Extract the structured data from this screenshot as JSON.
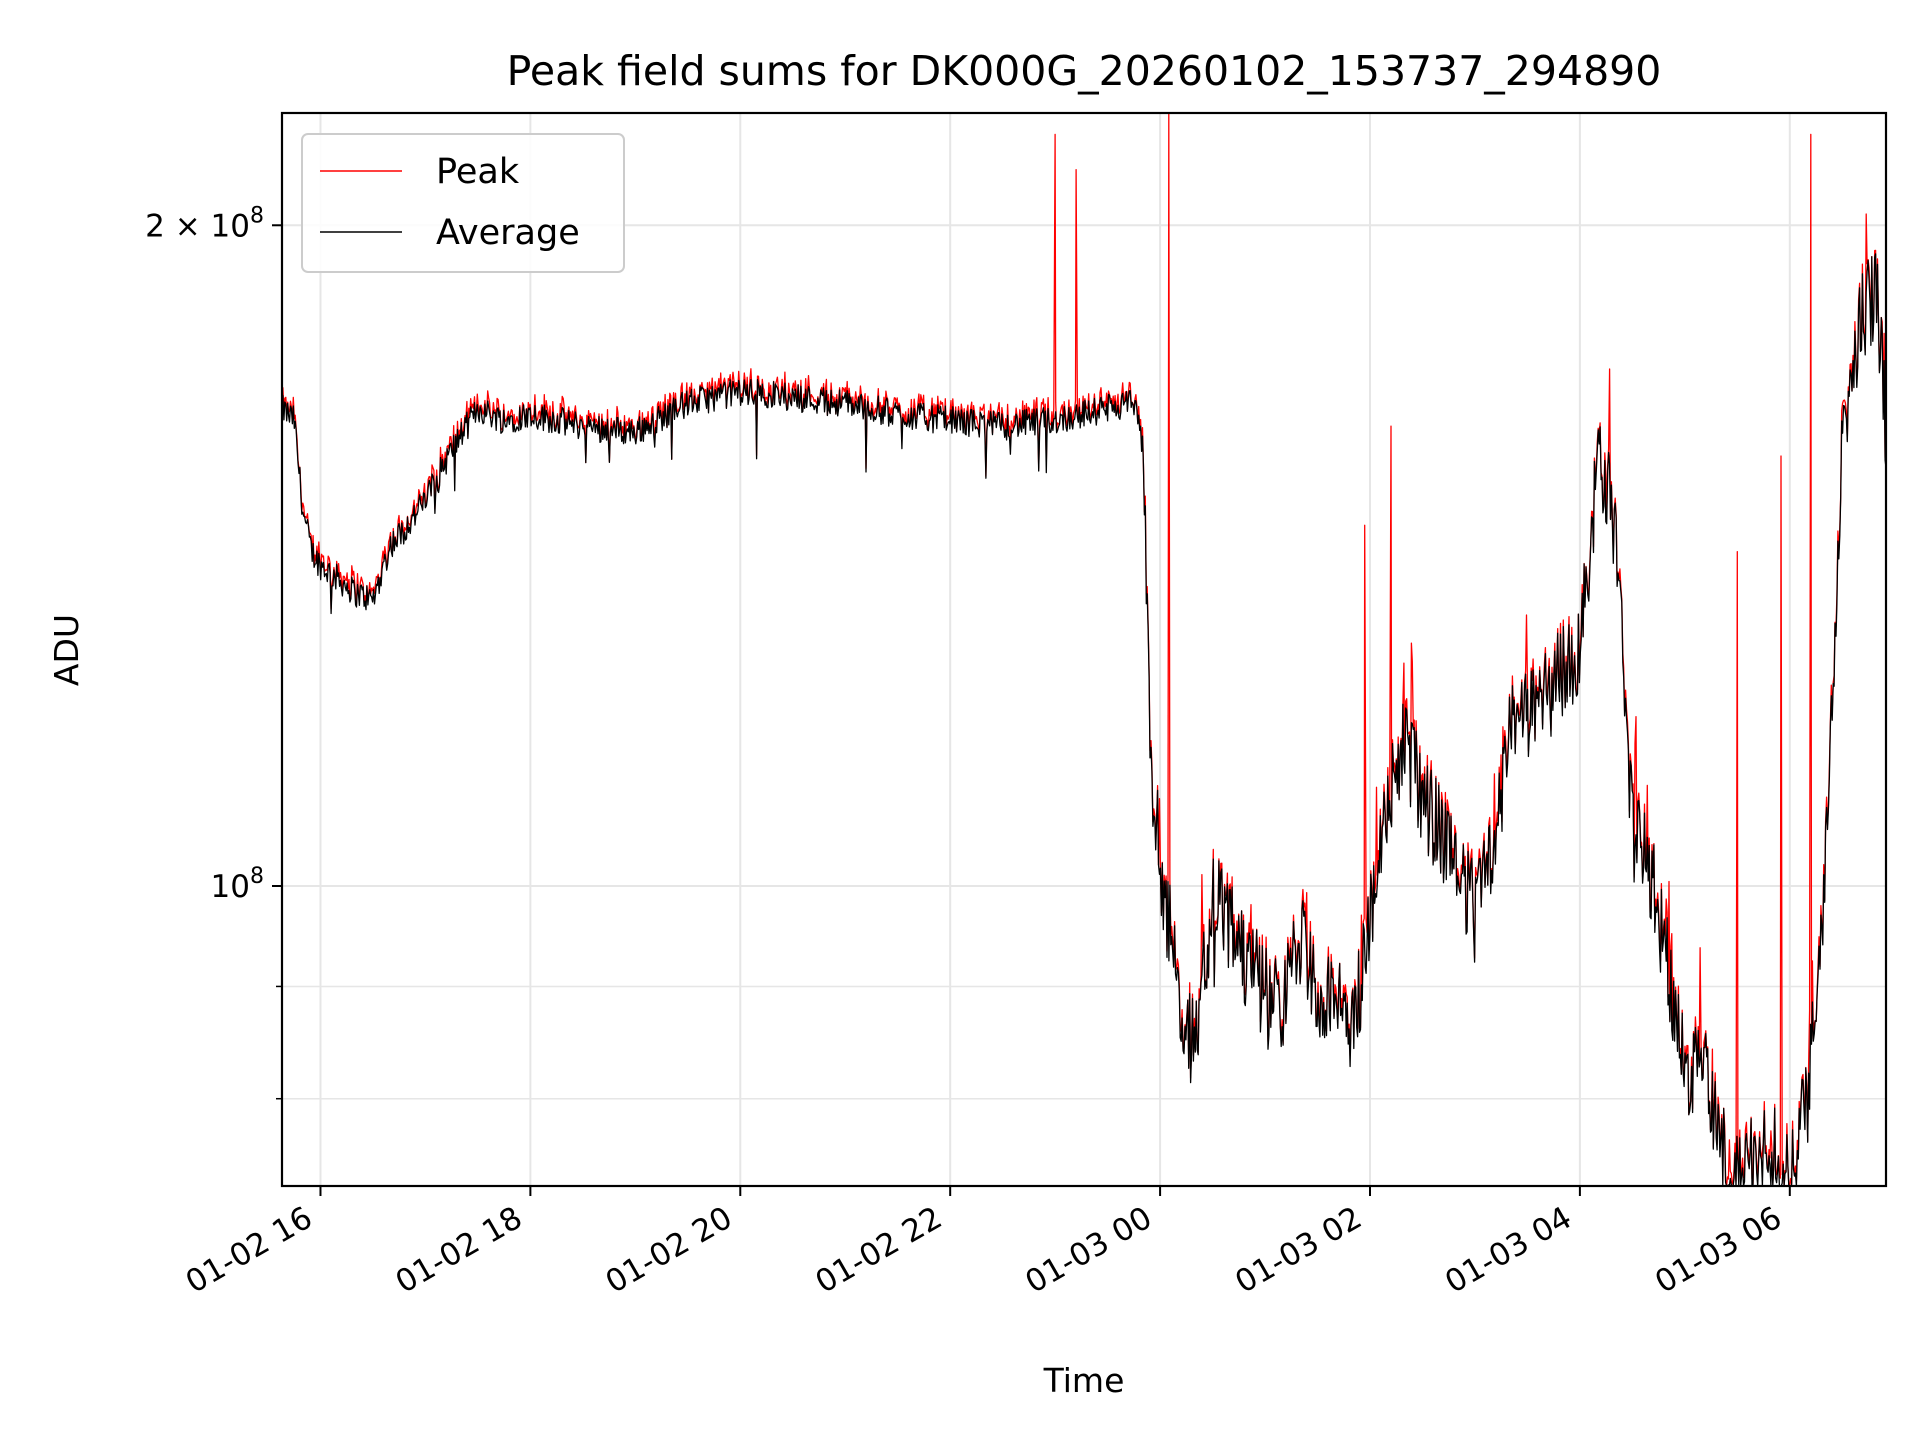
{
  "chart_data": {
    "type": "line",
    "title": "Peak field sums for DK000G_20260102_153737_294890",
    "xlabel": "Time",
    "ylabel": "ADU",
    "x_range": [
      "2026-01-02 15:38",
      "2026-01-03 06:55"
    ],
    "ylim": [
      73000000,
      225000000
    ],
    "yscale": "log",
    "grid": true,
    "legend": "upper left",
    "x_ticks": [
      "01-02 16",
      "01-02 18",
      "01-02 20",
      "01-02 22",
      "01-03 00",
      "01-03 02",
      "01-03 04",
      "01-03 06"
    ],
    "y_ticks": [
      {
        "value": 100000000,
        "base": "10",
        "exp": "8",
        "prefix": ""
      },
      {
        "value": 200000000,
        "base": "10",
        "exp": "8",
        "prefix": "2 × "
      }
    ],
    "y_minor_ticks": [
      80000000,
      90000000
    ],
    "anchors_x": [
      "2026-01-02 15:38",
      "2026-01-02 15:45",
      "2026-01-02 15:50",
      "2026-01-02 15:55",
      "2026-01-02 16:00",
      "2026-01-02 16:10",
      "2026-01-02 16:20",
      "2026-01-02 16:30",
      "2026-01-02 16:40",
      "2026-01-02 16:50",
      "2026-01-02 17:00",
      "2026-01-02 17:15",
      "2026-01-02 17:30",
      "2026-01-02 17:45",
      "2026-01-02 18:00",
      "2026-01-02 18:30",
      "2026-01-02 19:00",
      "2026-01-02 19:30",
      "2026-01-02 20:00",
      "2026-01-02 20:30",
      "2026-01-02 21:00",
      "2026-01-02 21:30",
      "2026-01-02 22:00",
      "2026-01-02 22:30",
      "2026-01-02 23:00",
      "2026-01-02 23:30",
      "2026-01-02 23:45",
      "2026-01-02 23:50",
      "2026-01-02 23:55",
      "2026-01-03 00:00",
      "2026-01-03 00:10",
      "2026-01-03 00:20",
      "2026-01-03 00:30",
      "2026-01-03 00:40",
      "2026-01-03 00:50",
      "2026-01-03 01:00",
      "2026-01-03 01:10",
      "2026-01-03 01:20",
      "2026-01-03 01:30",
      "2026-01-03 01:40",
      "2026-01-03 01:50",
      "2026-01-03 02:00",
      "2026-01-03 02:10",
      "2026-01-03 02:20",
      "2026-01-03 02:30",
      "2026-01-03 02:40",
      "2026-01-03 02:50",
      "2026-01-03 03:00",
      "2026-01-03 03:10",
      "2026-01-03 03:20",
      "2026-01-03 03:30",
      "2026-01-03 03:40",
      "2026-01-03 03:50",
      "2026-01-03 04:00",
      "2026-01-03 04:10",
      "2026-01-03 04:20",
      "2026-01-03 04:30",
      "2026-01-03 04:40",
      "2026-01-03 04:50",
      "2026-01-03 05:00",
      "2026-01-03 05:10",
      "2026-01-03 05:20",
      "2026-01-03 05:30",
      "2026-01-03 05:40",
      "2026-01-03 05:50",
      "2026-01-03 06:00",
      "2026-01-03 06:10",
      "2026-01-03 06:20",
      "2026-01-03 06:30",
      "2026-01-03 06:40",
      "2026-01-03 06:50",
      "2026-01-03 06:55"
    ],
    "anchors_y": [
      165000000,
      163000000,
      148000000,
      142000000,
      140000000,
      138000000,
      136000000,
      135000000,
      143000000,
      146000000,
      150000000,
      158000000,
      165000000,
      163000000,
      164000000,
      162000000,
      161000000,
      166000000,
      168000000,
      167000000,
      166000000,
      164000000,
      163000000,
      162000000,
      163000000,
      165000000,
      166000000,
      158000000,
      112000000,
      103000000,
      90000000,
      84000000,
      99000000,
      96000000,
      92000000,
      90000000,
      88000000,
      95000000,
      88000000,
      91000000,
      86000000,
      96000000,
      110000000,
      116000000,
      110000000,
      106000000,
      103000000,
      97000000,
      103000000,
      118000000,
      120000000,
      122000000,
      125000000,
      128000000,
      155000000,
      150000000,
      106000000,
      102000000,
      92000000,
      82000000,
      84000000,
      76000000,
      74000000,
      75000000,
      76000000,
      73000000,
      80000000,
      100000000,
      158000000,
      180000000,
      188000000,
      160000000
    ],
    "series": [
      {
        "name": "Peak",
        "color": "#ff0000",
        "spikes": [
          {
            "x": "2026-01-02 23:00",
            "y": 220000000
          },
          {
            "x": "2026-01-02 23:12",
            "y": 212000000
          },
          {
            "x": "2026-01-03 00:05",
            "y": 225000000
          },
          {
            "x": "2026-01-03 01:57",
            "y": 146000000
          },
          {
            "x": "2026-01-03 02:12",
            "y": 162000000
          },
          {
            "x": "2026-01-03 04:17",
            "y": 172000000
          },
          {
            "x": "2026-01-03 05:30",
            "y": 142000000
          },
          {
            "x": "2026-01-03 05:55",
            "y": 157000000
          },
          {
            "x": "2026-01-03 06:12",
            "y": 220000000
          }
        ]
      },
      {
        "name": "Average",
        "color": "#000000",
        "spikes": []
      }
    ]
  }
}
